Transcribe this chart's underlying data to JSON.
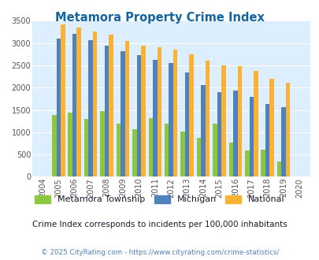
{
  "title": "Metamora Property Crime Index",
  "years": [
    2004,
    2005,
    2006,
    2007,
    2008,
    2009,
    2010,
    2011,
    2012,
    2013,
    2014,
    2015,
    2016,
    2017,
    2018,
    2019,
    2020
  ],
  "metamora": [
    0,
    1380,
    1440,
    1290,
    1475,
    1195,
    1065,
    1310,
    1195,
    1010,
    870,
    1200,
    760,
    590,
    615,
    345,
    0
  ],
  "michigan": [
    0,
    3100,
    3210,
    3060,
    2935,
    2825,
    2725,
    2620,
    2545,
    2340,
    2060,
    1905,
    1930,
    1785,
    1635,
    1565,
    0
  ],
  "national": [
    0,
    3415,
    3340,
    3260,
    3195,
    3045,
    2950,
    2900,
    2860,
    2740,
    2600,
    2500,
    2475,
    2370,
    2205,
    2115,
    0
  ],
  "colors": {
    "metamora": "#8dc63f",
    "michigan": "#4f81bd",
    "national": "#f9b234"
  },
  "ylim": [
    0,
    3500
  ],
  "yticks": [
    0,
    500,
    1000,
    1500,
    2000,
    2500,
    3000,
    3500
  ],
  "bg_color": "#ddeeff",
  "subtitle": "Crime Index corresponds to incidents per 100,000 inhabitants",
  "footer": "© 2025 CityRating.com - https://www.cityrating.com/crime-statistics/",
  "title_color": "#1464a0",
  "subtitle_color": "#1a1a2e",
  "footer_color": "#4f81bd",
  "bar_width": 0.27
}
